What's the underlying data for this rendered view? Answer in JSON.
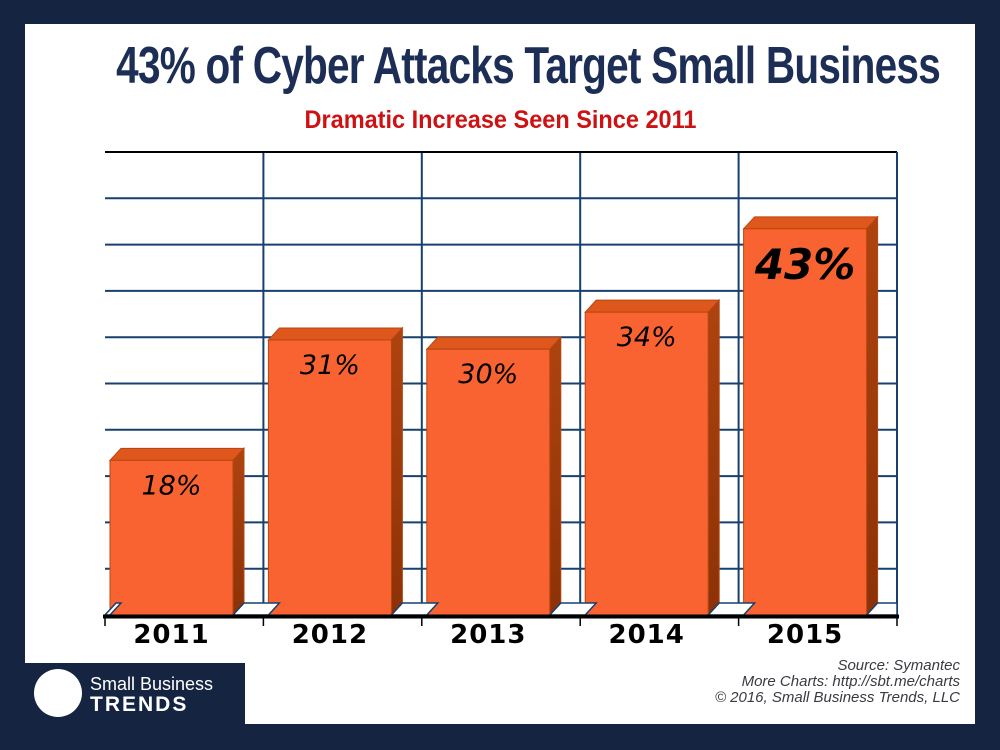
{
  "title": "43% of Cyber Attacks Target Small Business",
  "subtitle": "Dramatic Increase Seen Since 2011",
  "chart_data": {
    "type": "bar",
    "categories": [
      "2011",
      "2012",
      "2013",
      "2014",
      "2015"
    ],
    "values": [
      18,
      31,
      30,
      34,
      43
    ],
    "data_labels": [
      "18%",
      "31%",
      "30%",
      "34%",
      "43%"
    ],
    "emphasized_index": 4,
    "title": "43% of Cyber Attacks Target Small Business",
    "subtitle": "Dramatic Increase Seen Since 2011",
    "xlabel": "",
    "ylabel": "",
    "ylim": [
      0,
      50
    ],
    "gridline_step": 5,
    "grid": true,
    "y_axis_tick_labels_visible": false,
    "legend": "none",
    "style": "3d-bars"
  },
  "footer": {
    "logo": {
      "line1": "Small Business",
      "line2": "TRENDS"
    },
    "source_lines": [
      "Source: Symantec",
      "More Charts: http://sbt.me/charts",
      "© 2016, Small Business Trends, LLC"
    ]
  },
  "colors": {
    "navy": "#152441",
    "title_navy": "#1C2E56",
    "red": "#CE1113",
    "gridline": "#17406E",
    "axis_black": "#000000",
    "label_black": "#000000",
    "bar_front": "#F96331",
    "bar_top": "#E0571E",
    "bar_side_top": "#AE430F",
    "bar_side_bottom": "#8C3207",
    "bar_outline": "#B5470F",
    "text_gray": "#3A3A42",
    "background_white": "#FFFFFF"
  }
}
